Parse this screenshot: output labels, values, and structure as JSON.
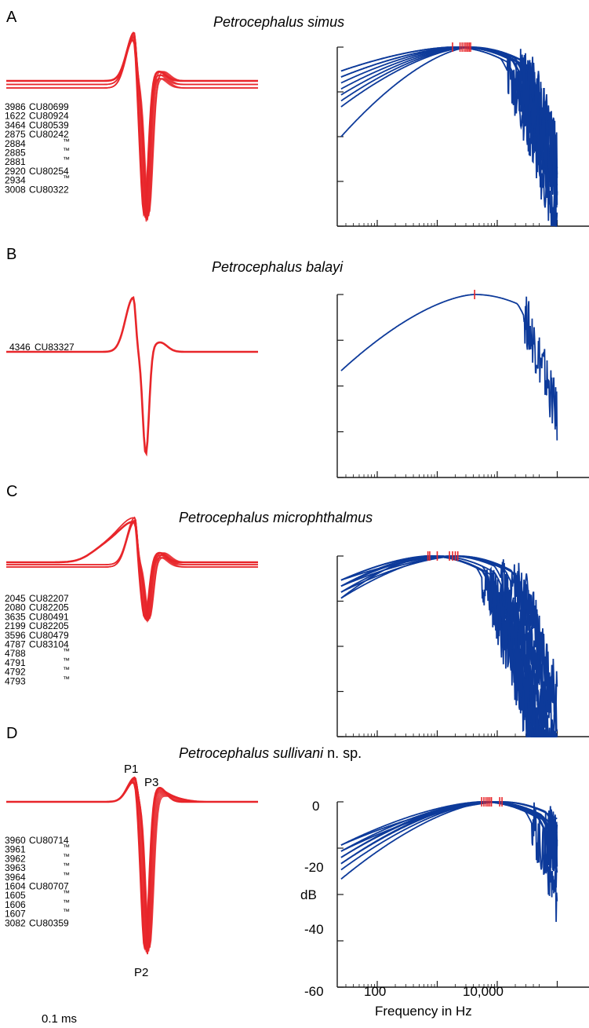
{
  "colors": {
    "waveform": "#e8262a",
    "spectrum": "#0d3a9a",
    "peak_marker": "#e8262a",
    "axis": "#1a1a1a"
  },
  "scale_bar_label": "0.1 ms",
  "panels": [
    {
      "letter": "A",
      "species": "Petrocephalus simus",
      "species_suffix": "",
      "specimens": [
        {
          "id": "3986",
          "catalog": "CU80699"
        },
        {
          "id": "1622",
          "catalog": "CU80924"
        },
        {
          "id": "3464",
          "catalog": "CU80539"
        },
        {
          "id": "2875",
          "catalog": "CU80242"
        },
        {
          "id": "2884",
          "catalog": "™"
        },
        {
          "id": "2885",
          "catalog": "™"
        },
        {
          "id": "2881",
          "catalog": "™"
        },
        {
          "id": "2920",
          "catalog": "CU80254"
        },
        {
          "id": "2934",
          "catalog": "™"
        },
        {
          "id": "3008",
          "catalog": "CU80322"
        }
      ],
      "peak_labels": []
    },
    {
      "letter": "B",
      "species": "Petrocephalus balayi",
      "species_suffix": "",
      "specimens": [
        {
          "id": "4346",
          "catalog": "CU83327"
        }
      ],
      "peak_labels": []
    },
    {
      "letter": "C",
      "species": "Petrocephalus microphthalmus",
      "species_suffix": "",
      "specimens": [
        {
          "id": "2045",
          "catalog": "CU82207"
        },
        {
          "id": "2080",
          "catalog": "CU82205"
        },
        {
          "id": "3635",
          "catalog": "CU80491"
        },
        {
          "id": "2199",
          "catalog": "CU82205"
        },
        {
          "id": "3596",
          "catalog": "CU80479"
        },
        {
          "id": "4787",
          "catalog": "CU83104"
        },
        {
          "id": "4788",
          "catalog": "™"
        },
        {
          "id": "4791",
          "catalog": "™"
        },
        {
          "id": "4792",
          "catalog": "™"
        },
        {
          "id": "4793",
          "catalog": "™"
        }
      ],
      "peak_labels": []
    },
    {
      "letter": "D",
      "species": "Petrocephalus sullivani",
      "species_suffix": " n. sp.",
      "specimens": [
        {
          "id": "3960",
          "catalog": "CU80714"
        },
        {
          "id": "3961",
          "catalog": "™"
        },
        {
          "id": "3962",
          "catalog": "™"
        },
        {
          "id": "3963",
          "catalog": "™"
        },
        {
          "id": "3964",
          "catalog": "™"
        },
        {
          "id": "1604",
          "catalog": "CU80707"
        },
        {
          "id": "1605",
          "catalog": "™"
        },
        {
          "id": "1606",
          "catalog": "™"
        },
        {
          "id": "1607",
          "catalog": "™"
        },
        {
          "id": "3082",
          "catalog": "CU80359"
        }
      ],
      "peak_labels": [
        "P1",
        "P2",
        "P3"
      ]
    }
  ],
  "chart_data": [
    {
      "type": "line",
      "panel": "A",
      "description_free": true,
      "x_scale": "log",
      "xlim": [
        25,
        100000
      ],
      "ylim": [
        -60,
        0
      ],
      "series_count": 10,
      "peak_frequencies_hz": [
        1800,
        2400,
        2600,
        2800,
        3000,
        3200,
        3400,
        3600
      ],
      "low_freq_levels_db": [
        -8,
        -10,
        -12,
        -14,
        -16,
        -18,
        -20,
        -30
      ]
    },
    {
      "type": "line",
      "panel": "B",
      "x_scale": "log",
      "xlim": [
        25,
        100000
      ],
      "ylim": [
        -60,
        0
      ],
      "series_count": 1,
      "peak_frequencies_hz": [
        4200
      ],
      "low_freq_levels_db": [
        -25
      ]
    },
    {
      "type": "line",
      "panel": "C",
      "x_scale": "log",
      "xlim": [
        25,
        100000
      ],
      "ylim": [
        -60,
        0
      ],
      "series_count": 10,
      "peak_frequencies_hz": [
        700,
        750,
        1000,
        1600,
        1800,
        2000,
        2200
      ],
      "low_freq_levels_db": [
        -8,
        -10,
        -12,
        -14
      ]
    },
    {
      "type": "line",
      "panel": "D",
      "x_scale": "log",
      "xlim": [
        25,
        100000
      ],
      "ylim": [
        -60,
        0
      ],
      "ylabel": "dB",
      "xlabel": "Frequency in Hz",
      "yticks": [
        0,
        -20,
        -40,
        -60
      ],
      "ytick_labels": [
        "0",
        "-20",
        "-40",
        "-60"
      ],
      "xticks": [
        100,
        10000
      ],
      "xtick_labels": [
        "100",
        "10,000"
      ],
      "series_count": 10,
      "peak_frequencies_hz": [
        5500,
        6000,
        6500,
        7000,
        7500,
        8000,
        11000,
        12000
      ],
      "low_freq_levels_db": [
        -14,
        -16,
        -18,
        -20,
        -22,
        -25
      ]
    }
  ]
}
